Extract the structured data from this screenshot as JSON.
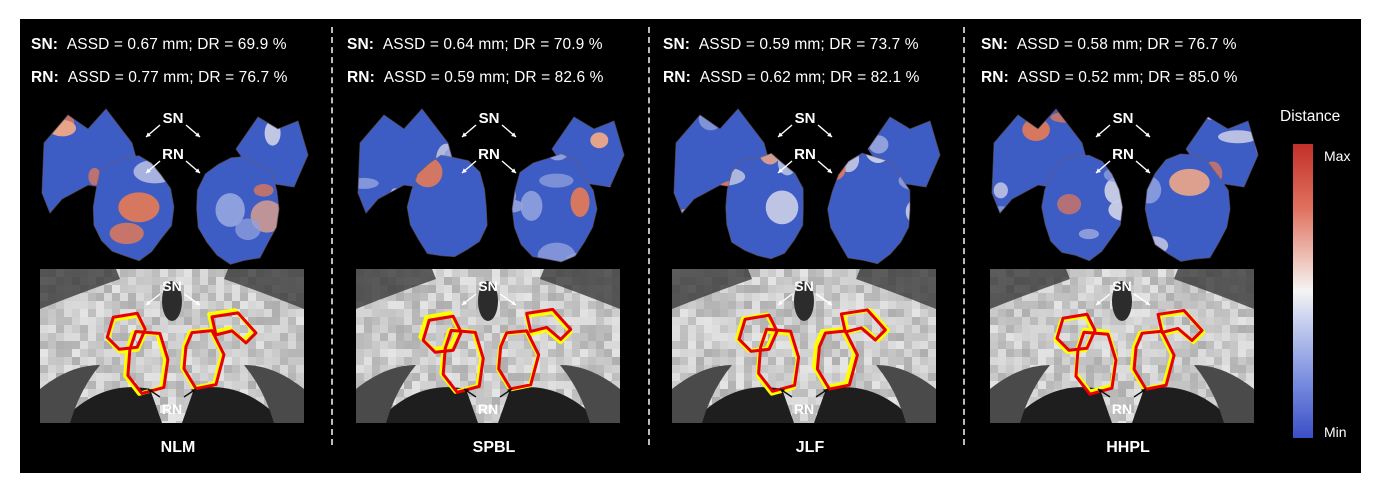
{
  "panels": [
    {
      "method": "NLM",
      "sn": {
        "label": "SN:",
        "value": "ASSD = 0.67 mm; DR = 69.9 %"
      },
      "rn": {
        "label": "RN:",
        "value": "ASSD = 0.77 mm; DR = 76.7 %"
      }
    },
    {
      "method": "SPBL",
      "sn": {
        "label": "SN:",
        "value": "ASSD = 0.64 mm; DR = 70.9 %"
      },
      "rn": {
        "label": "RN:",
        "value": "ASSD = 0.59 mm; DR = 82.6 %"
      }
    },
    {
      "method": "JLF",
      "sn": {
        "label": "SN:",
        "value": "ASSD = 0.59 mm; DR = 73.7 %"
      },
      "rn": {
        "label": "RN:",
        "value": "ASSD = 0.62 mm; DR = 82.1 %"
      }
    },
    {
      "method": "HHPL",
      "sn": {
        "label": "SN:",
        "value": "ASSD = 0.58 mm; DR = 76.7 %"
      },
      "rn": {
        "label": "RN:",
        "value": "ASSD = 0.52 mm; DR = 85.0 %"
      }
    }
  ],
  "labels": {
    "sn": "SN",
    "rn": "RN"
  },
  "legend": {
    "title": "Distance",
    "max": "Max",
    "min": "Min"
  },
  "colors": {
    "max": "#c2302a",
    "mid": "#f4f4f4",
    "min": "#3b4fc6",
    "ground_truth": "#ffff00",
    "segmentation": "#e60000"
  }
}
